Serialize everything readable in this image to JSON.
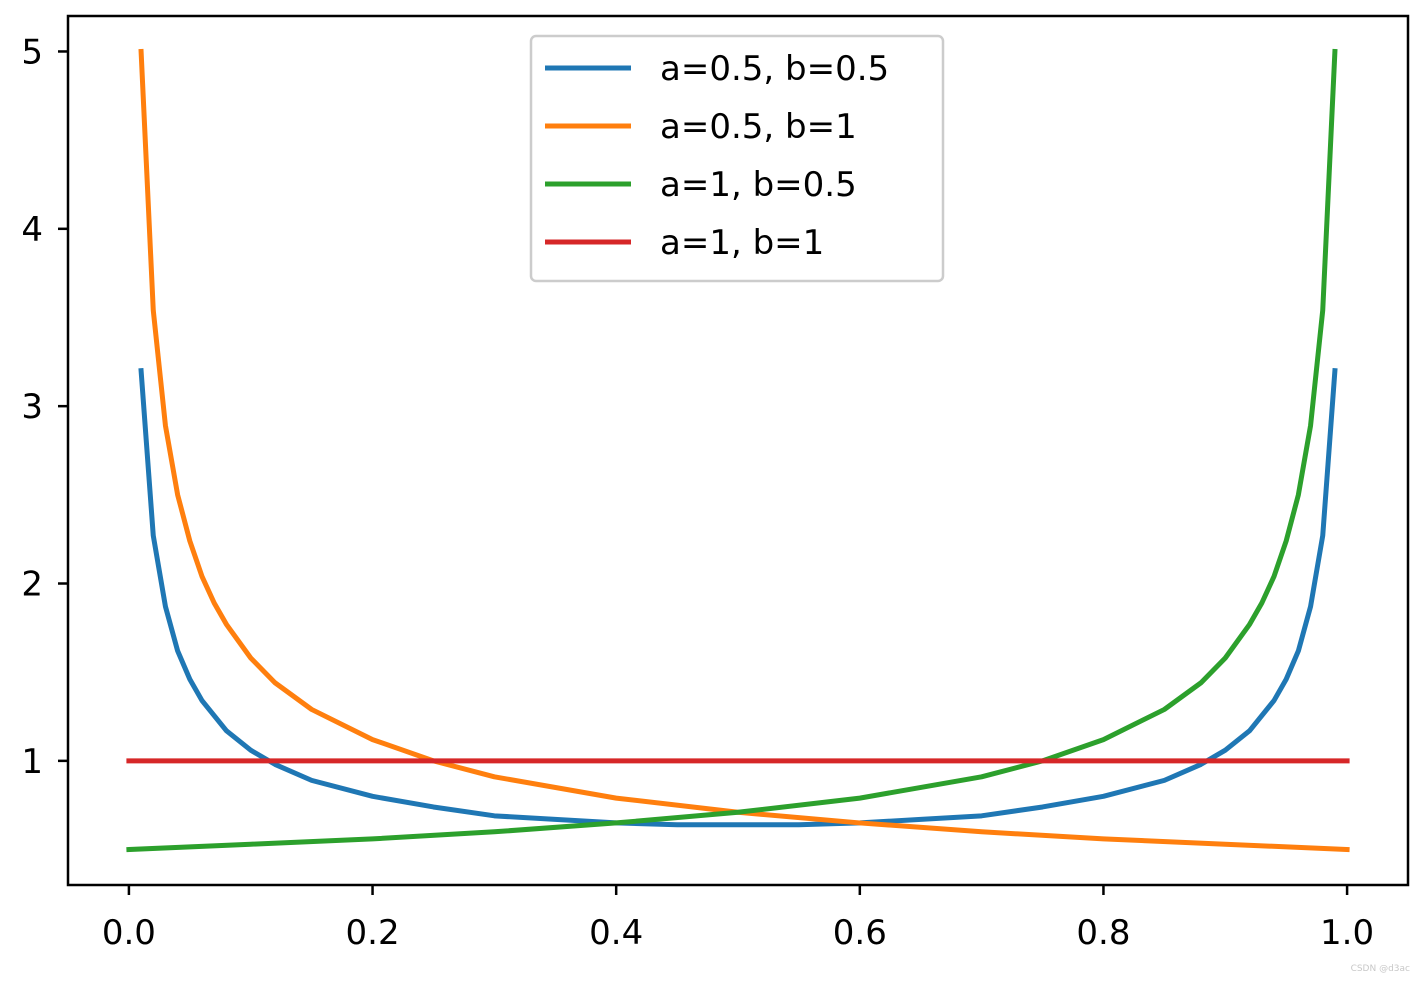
{
  "chart_data": {
    "type": "line",
    "title": "",
    "xlabel": "",
    "ylabel": "",
    "xlim": [
      -0.05,
      1.05
    ],
    "ylim": [
      0.3,
      5.2
    ],
    "xticks": [
      0.0,
      0.2,
      0.4,
      0.6,
      0.8,
      1.0
    ],
    "xtick_labels": [
      "0.0",
      "0.2",
      "0.4",
      "0.6",
      "0.8",
      "1.0"
    ],
    "yticks": [
      1,
      2,
      3,
      4,
      5
    ],
    "ytick_labels": [
      "1",
      "2",
      "3",
      "4",
      "5"
    ],
    "grid": false,
    "legend_position": "upper-center",
    "series": [
      {
        "name": "a=0.5, b=0.5",
        "color": "#1f77b4",
        "x": [
          0.01,
          0.02,
          0.03,
          0.04,
          0.05,
          0.06,
          0.08,
          0.1,
          0.12,
          0.15,
          0.2,
          0.25,
          0.3,
          0.35,
          0.4,
          0.45,
          0.5,
          0.55,
          0.6,
          0.65,
          0.7,
          0.75,
          0.8,
          0.85,
          0.88,
          0.9,
          0.92,
          0.94,
          0.95,
          0.96,
          0.97,
          0.98,
          0.99
        ],
        "y": [
          3.2,
          2.27,
          1.87,
          1.62,
          1.46,
          1.34,
          1.17,
          1.06,
          0.98,
          0.89,
          0.8,
          0.74,
          0.69,
          0.67,
          0.65,
          0.64,
          0.64,
          0.64,
          0.65,
          0.67,
          0.69,
          0.74,
          0.8,
          0.89,
          0.98,
          1.06,
          1.17,
          1.34,
          1.46,
          1.62,
          1.87,
          2.27,
          3.2
        ]
      },
      {
        "name": "a=0.5, b=1",
        "color": "#ff7f0e",
        "x": [
          0.01,
          0.02,
          0.03,
          0.04,
          0.05,
          0.06,
          0.07,
          0.08,
          0.1,
          0.12,
          0.15,
          0.2,
          0.25,
          0.3,
          0.4,
          0.5,
          0.6,
          0.7,
          0.8,
          0.9,
          1.0
        ],
        "y": [
          5.0,
          3.54,
          2.89,
          2.5,
          2.24,
          2.04,
          1.89,
          1.77,
          1.58,
          1.44,
          1.29,
          1.12,
          1.0,
          0.91,
          0.79,
          0.71,
          0.65,
          0.6,
          0.56,
          0.53,
          0.5
        ]
      },
      {
        "name": "a=1, b=0.5",
        "color": "#2ca02c",
        "x": [
          0.0,
          0.1,
          0.2,
          0.3,
          0.4,
          0.5,
          0.6,
          0.7,
          0.75,
          0.8,
          0.85,
          0.88,
          0.9,
          0.92,
          0.93,
          0.94,
          0.95,
          0.96,
          0.97,
          0.98,
          0.99
        ],
        "y": [
          0.5,
          0.53,
          0.56,
          0.6,
          0.65,
          0.71,
          0.79,
          0.91,
          1.0,
          1.12,
          1.29,
          1.44,
          1.58,
          1.77,
          1.89,
          2.04,
          2.24,
          2.5,
          2.89,
          3.54,
          5.0
        ]
      },
      {
        "name": "a=1, b=1",
        "color": "#d62728",
        "x": [
          0.0,
          1.0
        ],
        "y": [
          1.0,
          1.0
        ]
      }
    ]
  },
  "watermark": "CSDN @d3ac"
}
